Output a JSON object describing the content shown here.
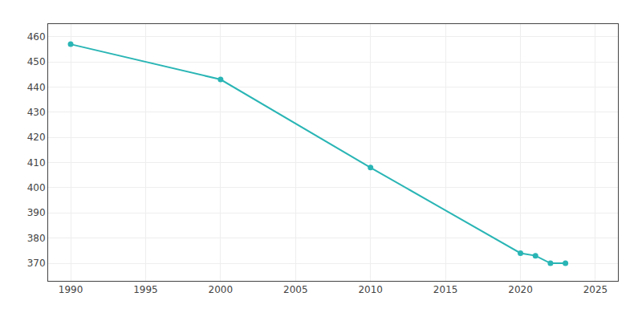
{
  "chart_data": {
    "type": "line",
    "x": [
      1990,
      2000,
      2010,
      2020,
      2021,
      2022,
      2023
    ],
    "values": [
      457,
      443,
      408,
      374,
      373,
      370,
      370
    ],
    "color": "#2ab5b5",
    "marker": "circle",
    "xlim": [
      1988.5,
      2026.5
    ],
    "ylim": [
      363,
      465
    ],
    "xticks": [
      1990,
      1995,
      2000,
      2005,
      2010,
      2015,
      2020,
      2025
    ],
    "yticks": [
      370,
      380,
      390,
      400,
      410,
      420,
      430,
      440,
      450,
      460
    ],
    "grid": true
  }
}
